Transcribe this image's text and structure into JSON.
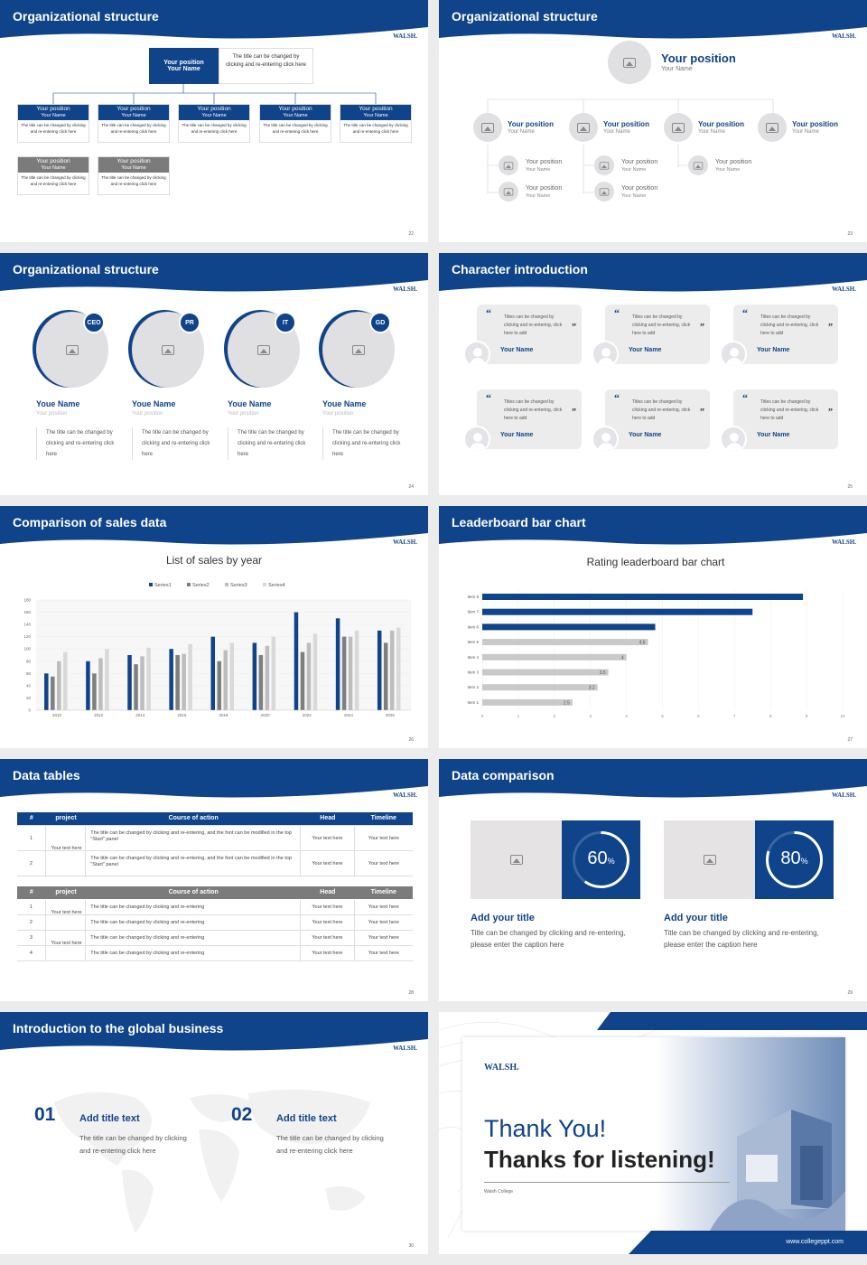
{
  "slides": {
    "s22": {
      "title": "Organizational structure",
      "logo": "WALSH.",
      "page": "22",
      "top": {
        "pos": "Your position",
        "name": "Your Name",
        "desc": "The title can be changed by clicking and re-entering click here"
      },
      "row1": [
        {
          "pos": "Your position",
          "name": "Your Name",
          "desc": "The title can be changed by clicking and re-entering click here"
        },
        {
          "pos": "Your position",
          "name": "Your Name",
          "desc": "The title can be changed by clicking and re-entering click here"
        },
        {
          "pos": "Your position",
          "name": "Your Name",
          "desc": "The title can be changed by clicking and re-entering click here"
        },
        {
          "pos": "Your position",
          "name": "Your Name",
          "desc": "The title can be changed by clicking and re-entering click here"
        },
        {
          "pos": "Your position",
          "name": "Your Name",
          "desc": "The title can be changed by clicking and re-entering click here"
        }
      ],
      "row2": [
        {
          "pos": "Your position",
          "name": "Your Name",
          "desc": "The title can be changed by clicking and re-entering click here"
        },
        {
          "pos": "Your position",
          "name": "Your Name",
          "desc": "The title can be changed by clicking and re-entering click here"
        }
      ]
    },
    "s23": {
      "title": "Organizational structure",
      "logo": "WALSH.",
      "page": "23",
      "top": {
        "pos": "Your position",
        "name": "Your Name"
      },
      "mid": [
        {
          "pos": "Your position",
          "name": "Your Name"
        },
        {
          "pos": "Your position",
          "name": "Your Name"
        },
        {
          "pos": "Your position",
          "name": "Your Name"
        },
        {
          "pos": "Your position",
          "name": "Your Name"
        }
      ],
      "sub": [
        {
          "pos": "Your position",
          "name": "Your Name"
        },
        {
          "pos": "Your position",
          "name": "Your Name"
        },
        {
          "pos": "Your position",
          "name": "Your Name"
        },
        {
          "pos": "Your position",
          "name": "Your Name"
        },
        {
          "pos": "Your position",
          "name": "Your Name"
        }
      ]
    },
    "s24": {
      "title": "Organizational structure",
      "logo": "WALSH.",
      "page": "24",
      "people": [
        {
          "badge": "CEO",
          "name": "Youe Name",
          "pos": "Your position",
          "desc": "The title can be changed by clicking and re-entering click here"
        },
        {
          "badge": "PR",
          "name": "Youe Name",
          "pos": "Your position",
          "desc": "The title can be changed by clicking and re-entering click here"
        },
        {
          "badge": "IT",
          "name": "Youe Name",
          "pos": "Your position",
          "desc": "The title can be changed by clicking and re-entering click here"
        },
        {
          "badge": "GD",
          "name": "Youe Name",
          "pos": "Your position",
          "desc": "The title can be changed by clicking and re-entering click here"
        }
      ]
    },
    "s25": {
      "title": "Character introduction",
      "logo": "WALSH.",
      "page": "25",
      "cards": [
        {
          "text": "Titles can be changed by clicking and re-entering, click here to add",
          "name": "Your Name"
        },
        {
          "text": "Titles can be changed by clicking and re-entering, click here to add",
          "name": "Your Name"
        },
        {
          "text": "Titles can be changed by clicking and re-entering, click here to add",
          "name": "Your Name"
        },
        {
          "text": "Titles can be changed by clicking and re-entering, click here to add",
          "name": "Your Name"
        },
        {
          "text": "Titles can be changed by clicking and re-entering, click here to add",
          "name": "Your Name"
        },
        {
          "text": "Titles can be changed by clicking and re-entering, click here to add",
          "name": "Your Name"
        }
      ]
    },
    "s26": {
      "title": "Comparison of sales data",
      "logo": "WALSH.",
      "page": "26"
    },
    "s27": {
      "title": "Leaderboard bar chart",
      "logo": "WALSH.",
      "page": "27"
    },
    "s28": {
      "title": "Data tables",
      "logo": "WALSH.",
      "page": "28",
      "headers": [
        "#",
        "project",
        "Course of action",
        "Head",
        "Timeline"
      ],
      "t1": {
        "group": "Your text here",
        "rows": [
          {
            "n": "1",
            "action": "The title can be changed by clicking and re-entering, and the font can be modified in the top \"Start\" panel",
            "head": "Your text here",
            "time": "Your text here"
          },
          {
            "n": "2",
            "action": "The title can be changed by clicking and re-entering, and the font can be modified in the top \"Start\" panel",
            "head": "Your text here",
            "time": "Your text here"
          }
        ]
      },
      "t2": {
        "groups": [
          "Your text here",
          "Your text here"
        ],
        "rows": [
          {
            "n": "1",
            "action": "The title can be changed by clicking and re-entering",
            "head": "Your text here",
            "time": "Your text here"
          },
          {
            "n": "2",
            "action": "The title can be changed by clicking and re-entering",
            "head": "Your text here",
            "time": "Your text here"
          },
          {
            "n": "3",
            "action": "The title can be changed by clicking and re-entering",
            "head": "Your text here",
            "time": "Your text here"
          },
          {
            "n": "4",
            "action": "The title can be changed by clicking and re-entering",
            "head": "Your text here",
            "time": "Your text here"
          }
        ]
      }
    },
    "s29": {
      "title": "Data comparison",
      "logo": "WALSH.",
      "page": "29",
      "items": [
        {
          "pct": 60,
          "num": "60",
          "unit": "%",
          "title": "Add your title",
          "desc": "Title can be changed by clicking and re-entering, please enter the caption here"
        },
        {
          "pct": 80,
          "num": "80",
          "unit": "%",
          "title": "Add your title",
          "desc": "Title can be changed by clicking and re-entering, please enter the caption here"
        }
      ]
    },
    "s30": {
      "title": "Introduction to the global business",
      "logo": "WALSH.",
      "page": "30",
      "items": [
        {
          "num": "01",
          "title": "Add title text",
          "desc": "The title can be changed by clicking and re-entering click here"
        },
        {
          "num": "02",
          "title": "Add title text",
          "desc": "The title can be changed by clicking and re-entering click here"
        }
      ]
    },
    "s31": {
      "logo": "WALSH.",
      "thanks": "Thank You!",
      "listening": "Thanks for listening!",
      "college": "Walsh College",
      "url": "www.collegeppt.com"
    }
  },
  "colors": {
    "navy": "#0f438a",
    "gray": "#7b7b7b",
    "light": "#c9c9c9"
  },
  "chart_data": [
    {
      "type": "bar",
      "title": "List of sales by year",
      "categories": [
        "2010",
        "2012",
        "2014",
        "2016",
        "2018",
        "2020",
        "2022",
        "2024",
        "2026"
      ],
      "series": [
        {
          "name": "Series1",
          "values": [
            60,
            80,
            90,
            100,
            120,
            110,
            160,
            150,
            130
          ]
        },
        {
          "name": "Series2",
          "values": [
            55,
            60,
            75,
            90,
            80,
            90,
            95,
            120,
            110
          ]
        },
        {
          "name": "Series3",
          "values": [
            80,
            85,
            88,
            92,
            98,
            105,
            110,
            120,
            130
          ]
        },
        {
          "name": "Series4",
          "values": [
            95,
            100,
            102,
            108,
            110,
            120,
            125,
            130,
            135
          ]
        }
      ],
      "yticks": [
        "0",
        "20",
        "40",
        "60",
        "80",
        "100",
        "120",
        "140",
        "160",
        "180"
      ],
      "ylim": [
        0,
        180
      ],
      "legend": "top"
    },
    {
      "type": "bar",
      "orientation": "horizontal",
      "title": "Rating leaderboard bar chart",
      "categories": [
        "Item 8",
        "Item 7",
        "Item 6",
        "Item 5",
        "Item 4",
        "Item 3",
        "Item 2",
        "Item 1"
      ],
      "values": [
        8.9,
        7.5,
        4.8,
        4.6,
        4.0,
        3.5,
        3.2,
        2.5
      ],
      "labels": [
        "",
        "",
        "",
        "4.6",
        "4",
        "3.5",
        "3.2",
        "2.5"
      ],
      "highlight": [
        true,
        true,
        true,
        false,
        false,
        false,
        false,
        false
      ],
      "xticks": [
        "0",
        "1",
        "2",
        "3",
        "4",
        "5",
        "6",
        "7",
        "8",
        "9",
        "10"
      ],
      "xlim": [
        0,
        10
      ]
    }
  ]
}
